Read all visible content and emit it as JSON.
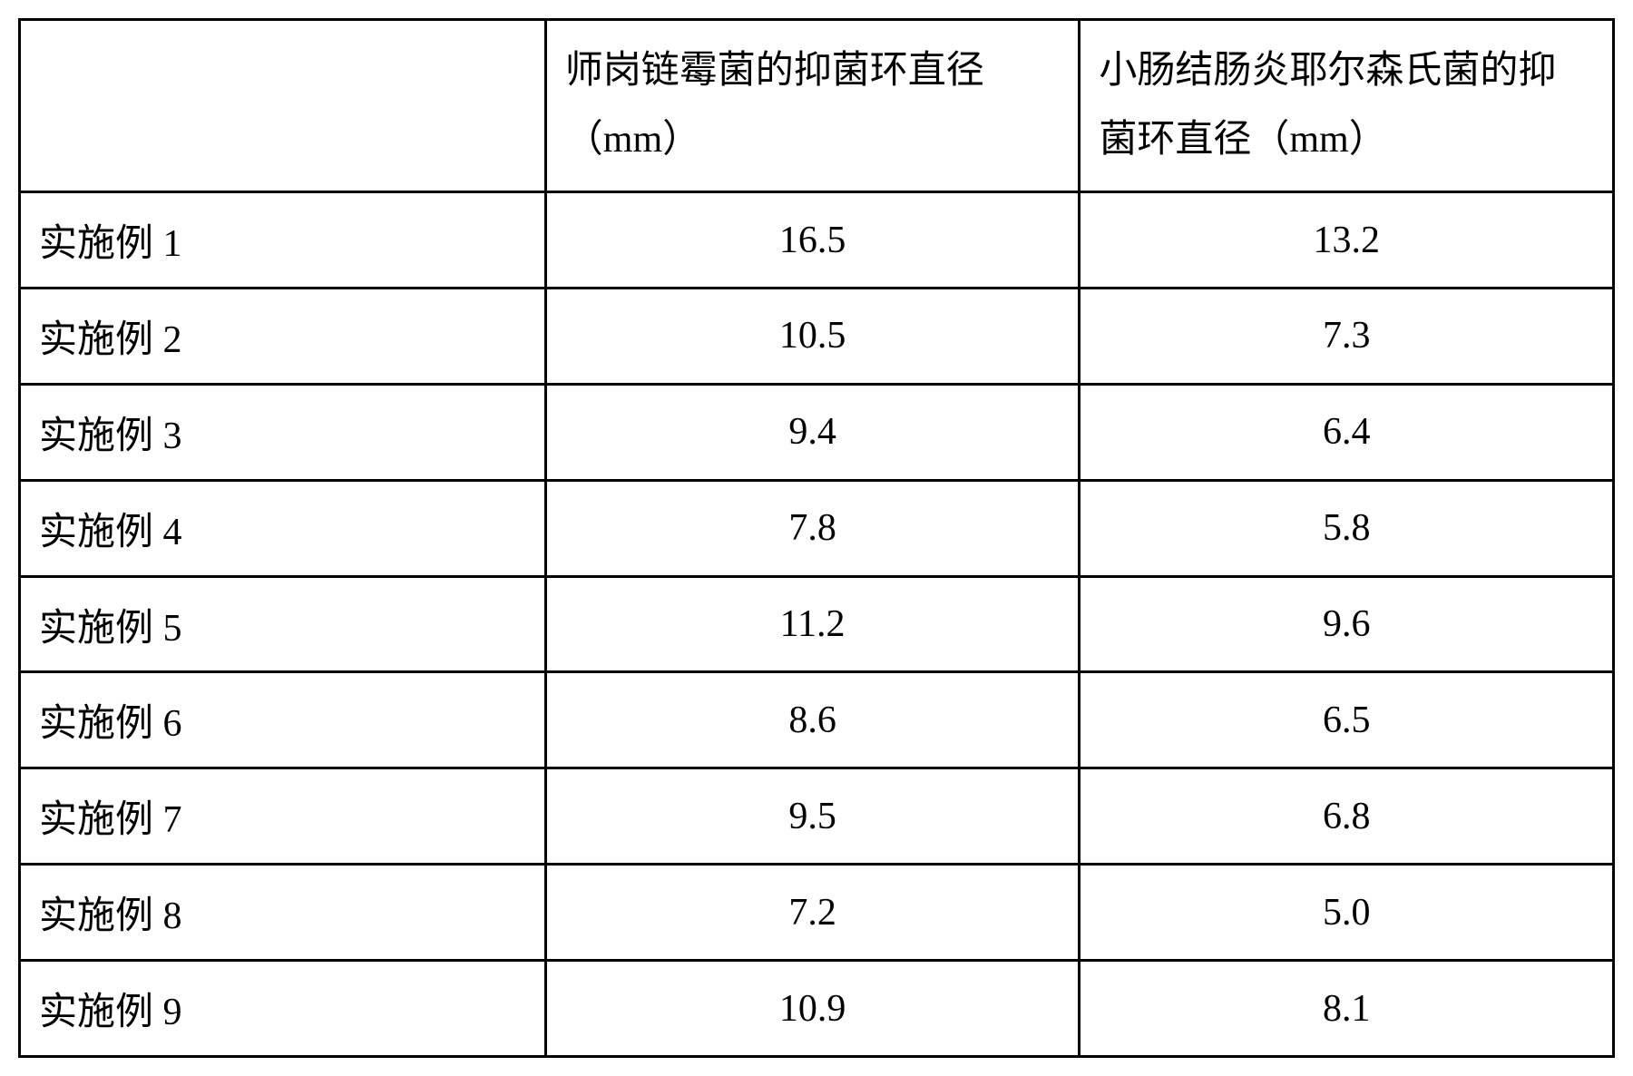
{
  "table": {
    "type": "table",
    "background_color": "#ffffff",
    "border_color": "#000000",
    "border_width": 3,
    "font_size_pt": 32,
    "text_color": "#000000",
    "columns": [
      {
        "label": "",
        "width_pct": 33,
        "align": "left"
      },
      {
        "label": "师岗链霉菌的抑菌环直径（mm）",
        "width_pct": 33.5,
        "align": "center"
      },
      {
        "label": "小肠结肠炎耶尔森氏菌的抑菌环直径（mm）",
        "width_pct": 33.5,
        "align": "center"
      }
    ],
    "rows": [
      {
        "label": "实施例 1",
        "col1": "16.5",
        "col2": "13.2"
      },
      {
        "label": "实施例 2",
        "col1": "10.5",
        "col2": "7.3"
      },
      {
        "label": "实施例 3",
        "col1": "9.4",
        "col2": "6.4"
      },
      {
        "label": "实施例 4",
        "col1": "7.8",
        "col2": "5.8"
      },
      {
        "label": "实施例 5",
        "col1": "11.2",
        "col2": "9.6"
      },
      {
        "label": "实施例 6",
        "col1": "8.6",
        "col2": "6.5"
      },
      {
        "label": "实施例 7",
        "col1": "9.5",
        "col2": "6.8"
      },
      {
        "label": "实施例 8",
        "col1": "7.2",
        "col2": "5.0"
      },
      {
        "label": "实施例 9",
        "col1": "10.9",
        "col2": "8.1"
      }
    ]
  }
}
